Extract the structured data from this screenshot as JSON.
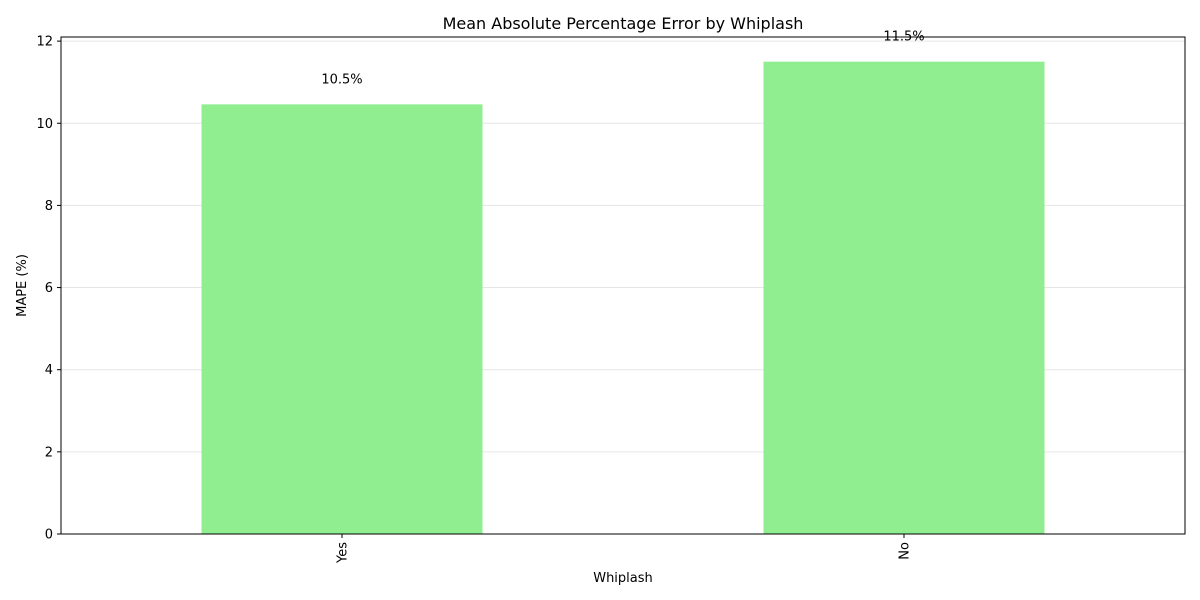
{
  "chart_data": {
    "type": "bar",
    "title": "Mean Absolute Percentage Error by Whiplash",
    "xlabel": "Whiplash",
    "ylabel": "MAPE (%)",
    "categories": [
      "Yes",
      "No"
    ],
    "values": [
      10.46,
      11.5
    ],
    "value_labels": [
      "10.5%",
      "11.5%"
    ],
    "ylim": [
      0,
      12.1
    ],
    "yticks": [
      0,
      2,
      4,
      6,
      8,
      10,
      12
    ],
    "ytick_labels": [
      "0",
      "2",
      "4",
      "6",
      "8",
      "10",
      "12"
    ],
    "xtick_rotation": "vertical",
    "grid": "horizontal",
    "bar_color": "#90ee90",
    "grid_color": "#e6e6e6",
    "axis_color": "#000000"
  }
}
